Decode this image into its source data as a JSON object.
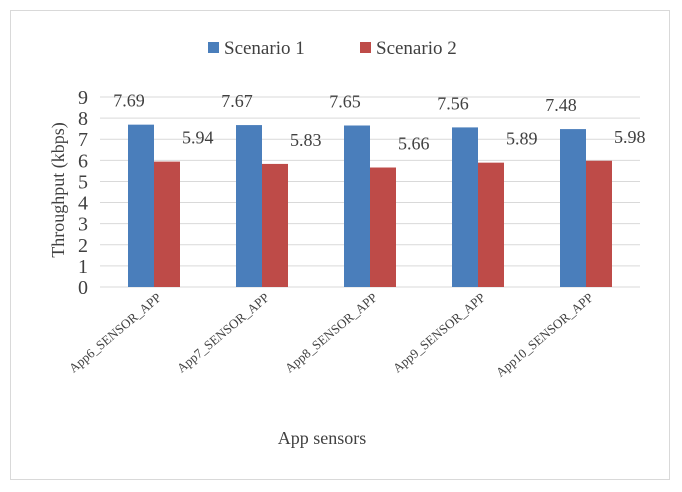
{
  "chart_data": {
    "type": "bar",
    "title": "",
    "xlabel": "App sensors",
    "ylabel": "Throughput (kbps)",
    "ylim": [
      0,
      9
    ],
    "yticks": [
      0,
      1,
      2,
      3,
      4,
      5,
      6,
      7,
      8,
      9
    ],
    "grid": true,
    "legend_position": "top",
    "categories": [
      "App6_SENSOR_APP",
      "App7_SENSOR_APP",
      "App8_SENSOR_APP",
      "App9_SENSOR_APP",
      "App10_SENSOR_APP"
    ],
    "series": [
      {
        "name": "Scenario 1",
        "color": "#4a7ebb",
        "values": [
          7.69,
          7.67,
          7.65,
          7.56,
          7.48
        ],
        "labels": [
          "7.69",
          "7.67",
          "7.65",
          "7.56",
          "7.48"
        ]
      },
      {
        "name": "Scenario 2",
        "color": "#be4b48",
        "values": [
          5.94,
          5.83,
          5.66,
          5.89,
          5.98
        ],
        "labels": [
          "5.94",
          "5.83",
          "5.66",
          "5.89",
          "5.98"
        ]
      }
    ]
  }
}
